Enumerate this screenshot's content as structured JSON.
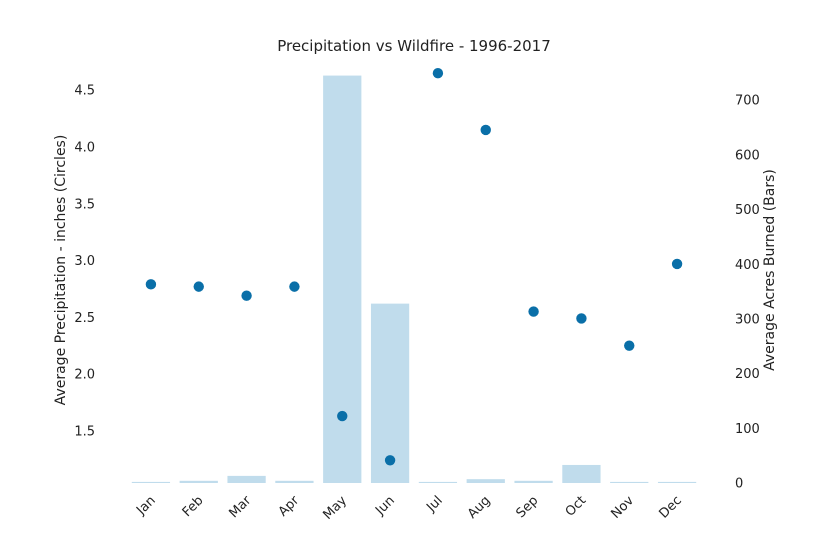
{
  "chart_data": {
    "type": "bar+scatter",
    "title": "Precipitation vs Wildfire - 1996-2017",
    "categories": [
      "Jan",
      "Feb",
      "Mar",
      "Apr",
      "May",
      "Jun",
      "Jul",
      "Aug",
      "Sep",
      "Oct",
      "Nov",
      "Dec"
    ],
    "ylabel_left": "Average Precipitation - inches (Circles)",
    "ylabel_right": "Average Acres Burned (Bars)",
    "xlabel": "",
    "yticks_left": [
      1.5,
      2.0,
      2.5,
      3.0,
      3.5,
      4.0,
      4.5
    ],
    "yticks_right": [
      0,
      100,
      200,
      300,
      400,
      500,
      600,
      700
    ],
    "ylim_left": [
      1.04,
      4.74
    ],
    "ylim_right": [
      0,
      768
    ],
    "grid": false,
    "series": [
      {
        "kind": "bar",
        "axis": "right",
        "color": "#c0dcec",
        "values": [
          2,
          4,
          13,
          4,
          745,
          328,
          2,
          7,
          4,
          33,
          2,
          2
        ]
      },
      {
        "kind": "scatter",
        "axis": "left",
        "color": "#0a6fa8",
        "values": [
          2.79,
          2.77,
          2.69,
          2.77,
          1.63,
          1.24,
          4.65,
          4.15,
          2.55,
          2.49,
          2.25,
          2.97
        ]
      }
    ]
  }
}
